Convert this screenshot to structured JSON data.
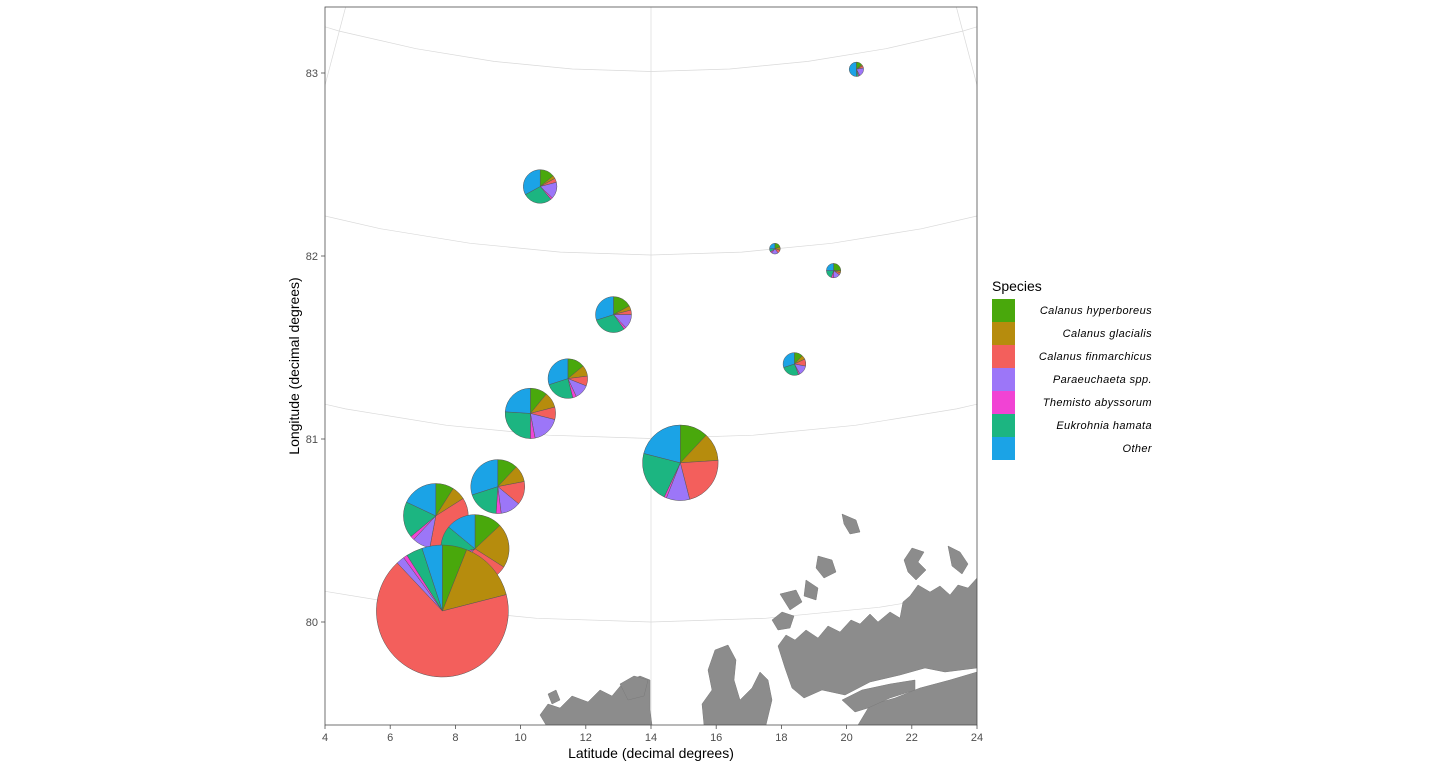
{
  "chart_data": {
    "type": "scatter-pie-map",
    "xlabel": "Latitude (decimal degrees)",
    "ylabel": "Longitude (decimal degrees)",
    "xlim": [
      4,
      24
    ],
    "ylim": [
      79.45,
      83.3
    ],
    "xticks": [
      "4",
      "6",
      "8",
      "10",
      "12",
      "14",
      "16",
      "18",
      "20",
      "22",
      "24"
    ],
    "yticks": [
      "80",
      "81",
      "82",
      "83"
    ],
    "legend": {
      "title": "Species",
      "position": "right",
      "entries": [
        {
          "label": "Calanus hyperboreus",
          "color": "#49A80C"
        },
        {
          "label": "Calanus glacialis",
          "color": "#B68C0D"
        },
        {
          "label": "Calanus finmarchicus",
          "color": "#F35F5C"
        },
        {
          "label": "Paraeuchaeta spp.",
          "color": "#9C76F8"
        },
        {
          "label": "Themisto abyssorum",
          "color": "#F143D4"
        },
        {
          "label": "Eukrohnia hamata",
          "color": "#1CB581"
        },
        {
          "label": "Other",
          "color": "#1BA3E6"
        }
      ]
    },
    "stations": [
      {
        "lon": 20.3,
        "lat": 83.02,
        "size": 0.12,
        "values": [
          0.14,
          0.03,
          0.05,
          0.2,
          0.03,
          0.05,
          0.5
        ]
      },
      {
        "lon": 10.6,
        "lat": 82.38,
        "size": 0.28,
        "values": [
          0.14,
          0.03,
          0.04,
          0.16,
          0.02,
          0.28,
          0.33
        ]
      },
      {
        "lon": 17.8,
        "lat": 82.04,
        "size": 0.09,
        "values": [
          0.2,
          0.1,
          0.1,
          0.2,
          0.05,
          0.1,
          0.25
        ]
      },
      {
        "lon": 19.6,
        "lat": 81.92,
        "size": 0.12,
        "values": [
          0.25,
          0.05,
          0.05,
          0.15,
          0.05,
          0.2,
          0.25
        ]
      },
      {
        "lon": 12.85,
        "lat": 81.68,
        "size": 0.3,
        "values": [
          0.17,
          0.04,
          0.04,
          0.13,
          0.02,
          0.3,
          0.3
        ]
      },
      {
        "lon": 18.4,
        "lat": 81.41,
        "size": 0.19,
        "values": [
          0.12,
          0.06,
          0.1,
          0.14,
          0.02,
          0.26,
          0.3
        ]
      },
      {
        "lon": 11.45,
        "lat": 81.33,
        "size": 0.33,
        "values": [
          0.14,
          0.09,
          0.08,
          0.12,
          0.03,
          0.24,
          0.3
        ]
      },
      {
        "lon": 10.3,
        "lat": 81.14,
        "size": 0.42,
        "values": [
          0.11,
          0.1,
          0.08,
          0.18,
          0.03,
          0.26,
          0.24
        ]
      },
      {
        "lon": 14.9,
        "lat": 80.87,
        "size": 0.63,
        "values": [
          0.12,
          0.12,
          0.22,
          0.1,
          0.01,
          0.22,
          0.21
        ]
      },
      {
        "lon": 9.3,
        "lat": 80.74,
        "size": 0.45,
        "values": [
          0.12,
          0.1,
          0.14,
          0.12,
          0.03,
          0.19,
          0.3
        ]
      },
      {
        "lon": 7.4,
        "lat": 80.58,
        "size": 0.54,
        "values": [
          0.09,
          0.07,
          0.37,
          0.09,
          0.02,
          0.18,
          0.18
        ]
      },
      {
        "lon": 8.6,
        "lat": 80.4,
        "size": 0.57,
        "values": [
          0.13,
          0.21,
          0.28,
          0.05,
          0.04,
          0.15,
          0.14
        ]
      },
      {
        "lon": 7.6,
        "lat": 80.06,
        "size": 1.1,
        "values": [
          0.06,
          0.15,
          0.67,
          0.02,
          0.01,
          0.04,
          0.05
        ]
      }
    ]
  }
}
